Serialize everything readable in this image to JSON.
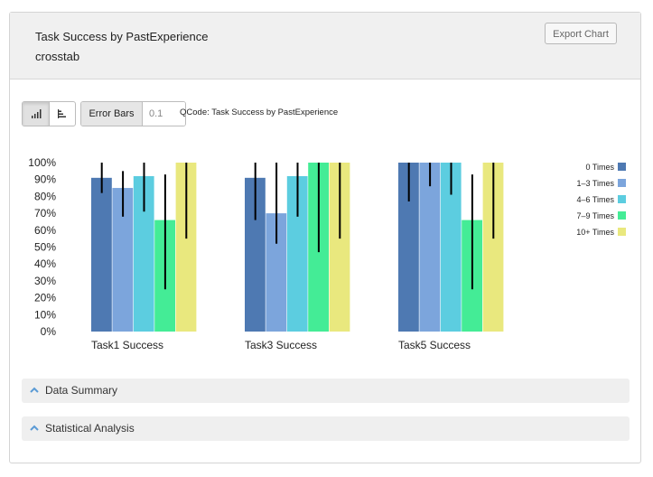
{
  "header": {
    "title": "Task Success by PastExperience",
    "subtitle": "crosstab",
    "export_label": "Export Chart"
  },
  "toolbar": {
    "error_bars_label": "Error Bars",
    "error_bars_value": "0.1",
    "qcode_label": "QCode: Task Success by PastExperience"
  },
  "accordions": [
    {
      "label": "Data Summary"
    },
    {
      "label": "Statistical Analysis"
    }
  ],
  "chart_data": {
    "type": "bar",
    "categories": [
      "Task1 Success",
      "Task3 Success",
      "Task5 Success"
    ],
    "y_ticks": [
      "100%",
      "90%",
      "80%",
      "70%",
      "60%",
      "50%",
      "40%",
      "30%",
      "20%",
      "10%",
      "0%"
    ],
    "ylim": [
      0,
      100
    ],
    "legend_position": "right",
    "series": [
      {
        "name": "0 Times",
        "color": "#4e79b2",
        "values": [
          91,
          91,
          100
        ],
        "err_low": [
          82,
          66,
          77
        ],
        "err_high": [
          100,
          100,
          100
        ]
      },
      {
        "name": "1–3 Times",
        "color": "#7ca5dc",
        "values": [
          85,
          70,
          100
        ],
        "err_low": [
          68,
          52,
          86
        ],
        "err_high": [
          95,
          100,
          100
        ]
      },
      {
        "name": "4–6 Times",
        "color": "#5ccde0",
        "values": [
          92,
          92,
          100
        ],
        "err_low": [
          71,
          68,
          81
        ],
        "err_high": [
          100,
          100,
          100
        ]
      },
      {
        "name": "7–9 Times",
        "color": "#44ec96",
        "values": [
          66,
          100,
          66
        ],
        "err_low": [
          25,
          47,
          25
        ],
        "err_high": [
          93,
          100,
          93
        ]
      },
      {
        "name": "10+ Times",
        "color": "#e9e87e",
        "values": [
          100,
          100,
          100
        ],
        "err_low": [
          55,
          55,
          55
        ],
        "err_high": [
          100,
          100,
          100
        ]
      }
    ]
  }
}
